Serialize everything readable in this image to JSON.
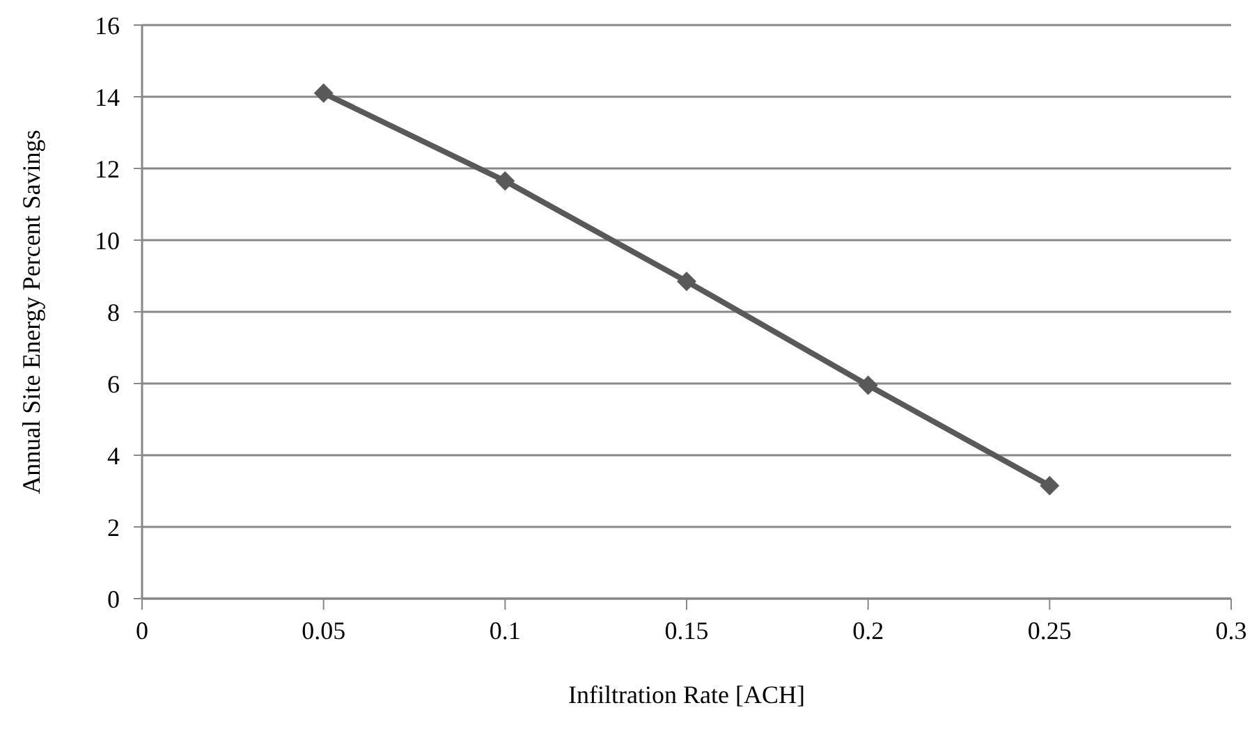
{
  "chart_data": {
    "type": "line",
    "xlabel": "Infiltration Rate [ACH]",
    "ylabel": "Annual Site Energy Percent Savings",
    "x": [
      0.05,
      0.1,
      0.15,
      0.2,
      0.25
    ],
    "series": [
      {
        "color": "#595959",
        "values": [
          14.1,
          11.65,
          8.85,
          5.95,
          3.15
        ]
      }
    ],
    "xlim": [
      0,
      0.3
    ],
    "xticks": [
      0,
      0.05,
      0.1,
      0.15,
      0.2,
      0.25,
      0.3
    ],
    "ylim": [
      0,
      16
    ],
    "yticks": [
      0,
      2,
      4,
      6,
      8,
      10,
      12,
      14,
      16
    ],
    "grid": "y",
    "legend": false,
    "marker": "diamond",
    "line_style": "solid"
  }
}
